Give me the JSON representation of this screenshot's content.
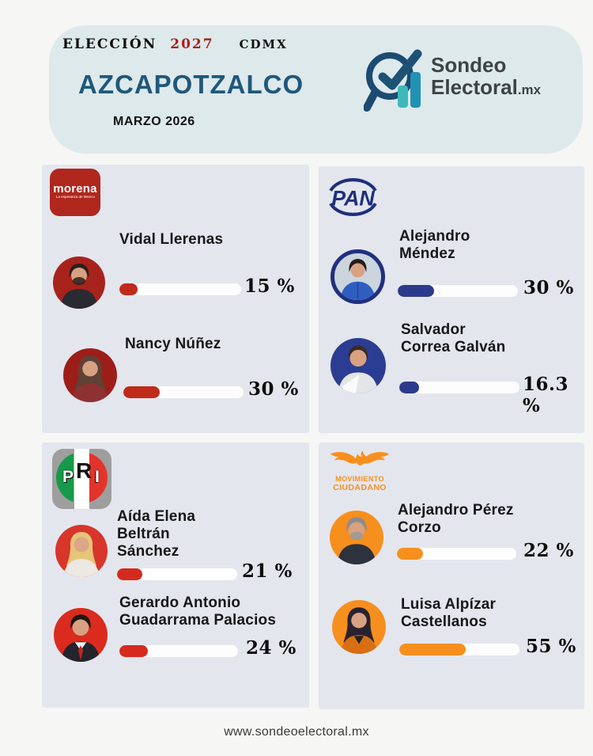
{
  "header": {
    "kicker": {
      "label": "ELECCIÓN",
      "year": "2027",
      "region": "CDMX"
    },
    "title": "AZCAPOTZALCO",
    "date": "MARZO 2026",
    "brand": {
      "line1": "Sondeo",
      "line2": "Electoral",
      "suffix": ".mx"
    }
  },
  "colors": {
    "page_bg": "#f6f6f4",
    "header_bg": "#dee9ec",
    "panel_bg": "#e4e6ee",
    "title_blue": "#1f587b",
    "kicker_year_red": "#ab2015",
    "brand_navy": "#1c4b72",
    "brand_teal_light": "#3fb8bc",
    "brand_teal_dark": "#2191b4",
    "morena_bar": "#c02a1b",
    "pan_bar": "#2c3a8c",
    "pri_bar": "#d62a1e",
    "mc_bar": "#f78f1e",
    "bar_track": "#fdfdfe"
  },
  "panels": [
    {
      "id": "morena",
      "party_name": "Morena",
      "logo": {
        "text": "morena",
        "subtext": "La esperanza de México"
      },
      "candidates": [
        {
          "name": "Vidal Llerenas",
          "percent": 15,
          "percent_label": "15 %"
        },
        {
          "name": "Nancy Núñez",
          "percent": 30,
          "percent_label": "30 %"
        }
      ]
    },
    {
      "id": "pan",
      "party_name": "PAN",
      "logo": {
        "text": "PAN"
      },
      "candidates": [
        {
          "name": "Alejandro\nMéndez",
          "percent": 30,
          "percent_label": "30 %"
        },
        {
          "name": "Salvador\nCorrea Galván",
          "percent": 16.3,
          "percent_label": "16.3 %"
        }
      ]
    },
    {
      "id": "pri",
      "party_name": "PRI",
      "logo": {
        "letters": [
          "P",
          "R",
          "I"
        ]
      },
      "candidates": [
        {
          "name": "Aída Elena\nBeltrán\nSánchez",
          "percent": 21,
          "percent_label": "21 %"
        },
        {
          "name": "Gerardo Antonio\nGuadarrama Palacios",
          "percent": 24,
          "percent_label": "24 %"
        }
      ]
    },
    {
      "id": "mc",
      "party_name": "Movimiento Ciudadano",
      "logo": {
        "line1": "MOVIMIENTO",
        "line2": "CIUDADANO"
      },
      "candidates": [
        {
          "name": "Alejandro Pérez\nCorzo",
          "percent": 22,
          "percent_label": "22 %"
        },
        {
          "name": "Luisa Alpízar\nCastellanos",
          "percent": 55,
          "percent_label": "55 %"
        }
      ]
    }
  ],
  "footer": {
    "url": "www.sondeoelectoral.mx"
  },
  "chart_data": {
    "type": "bar",
    "orientation": "horizontal",
    "title": "Elección 2027 CDMX — Azcapotzalco (Marzo 2026)",
    "unit": "%",
    "xlim": [
      0,
      100
    ],
    "categories": [
      "Vidal Llerenas (Morena)",
      "Nancy Núñez (Morena)",
      "Alejandro Méndez (PAN)",
      "Salvador Correa Galván (PAN)",
      "Aída Elena Beltrán Sánchez (PRI)",
      "Gerardo Antonio Guadarrama Palacios (PRI)",
      "Alejandro Pérez Corzo (Movimiento Ciudadano)",
      "Luisa Alpízar Castellanos (Movimiento Ciudadano)"
    ],
    "values": [
      15,
      30,
      30,
      16.3,
      21,
      24,
      22,
      55
    ],
    "bar_colors": [
      "#c02a1b",
      "#c02a1b",
      "#2c3a8c",
      "#2c3a8c",
      "#d62a1e",
      "#d62a1e",
      "#f78f1e",
      "#f78f1e"
    ]
  }
}
